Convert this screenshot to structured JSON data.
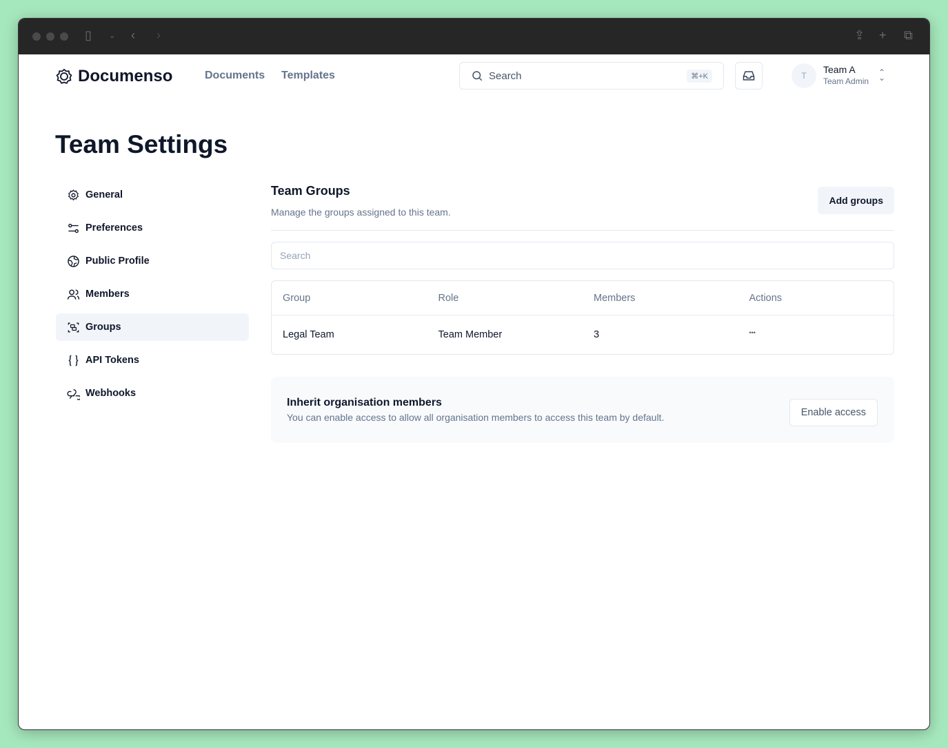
{
  "header": {
    "brand": "Documenso",
    "nav": [
      "Documents",
      "Templates"
    ],
    "search_label": "Search",
    "search_shortcut": "⌘+K",
    "team": {
      "avatar_initial": "T",
      "name": "Team A",
      "role": "Team Admin"
    }
  },
  "page_title": "Team Settings",
  "sidebar": {
    "items": [
      {
        "label": "General",
        "icon": "gear-icon"
      },
      {
        "label": "Preferences",
        "icon": "sliders-icon"
      },
      {
        "label": "Public Profile",
        "icon": "globe-icon"
      },
      {
        "label": "Members",
        "icon": "users-icon"
      },
      {
        "label": "Groups",
        "icon": "group-icon",
        "active": true
      },
      {
        "label": "API Tokens",
        "icon": "braces-icon"
      },
      {
        "label": "Webhooks",
        "icon": "webhook-icon"
      }
    ]
  },
  "main": {
    "title": "Team Groups",
    "description": "Manage the groups assigned to this team.",
    "add_button": "Add groups",
    "search_placeholder": "Search",
    "table": {
      "headers": [
        "Group",
        "Role",
        "Members",
        "Actions"
      ],
      "rows": [
        [
          "Legal Team",
          "Team Member",
          "3",
          "•••"
        ]
      ]
    },
    "inherit": {
      "title": "Inherit organisation members",
      "description": "You can enable access to allow all organisation members to access this team by default.",
      "button": "Enable access"
    }
  }
}
